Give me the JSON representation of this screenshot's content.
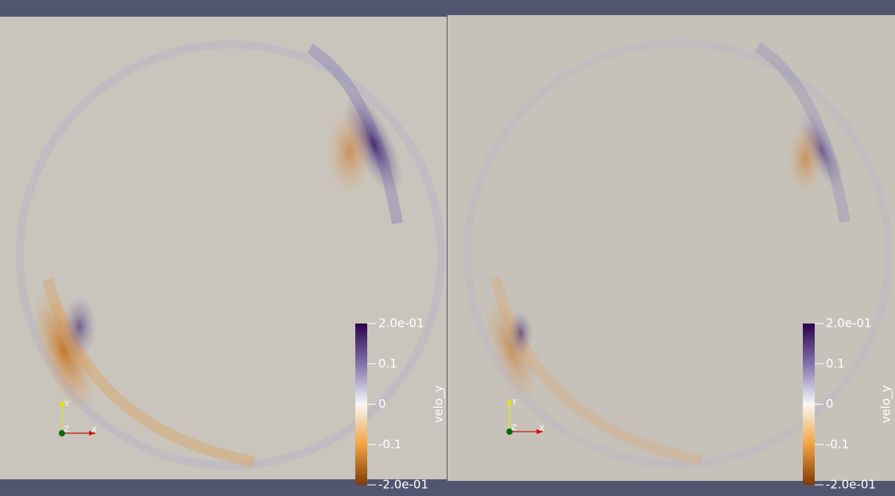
{
  "views": [
    {
      "colorbar": {
        "title": "velo_y",
        "range": [
          -0.2,
          0.2
        ],
        "ticks": [
          {
            "value": 0.2,
            "label": "2.0e-01"
          },
          0.1,
          0,
          -0.1,
          {
            "value": -0.2,
            "label": "-2.0e-01"
          }
        ]
      },
      "axes": {
        "x": "X",
        "y": "Y",
        "z": "Z"
      }
    },
    {
      "colorbar": {
        "title": "velo_y",
        "range": [
          -0.2,
          0.2
        ],
        "ticks": [
          {
            "value": 0.2,
            "label": "2.0e-01"
          },
          0.1,
          0,
          -0.1,
          {
            "value": -0.2,
            "label": "-2.0e-01"
          }
        ]
      },
      "axes": {
        "x": "X",
        "y": "Y",
        "z": "Z"
      }
    }
  ]
}
